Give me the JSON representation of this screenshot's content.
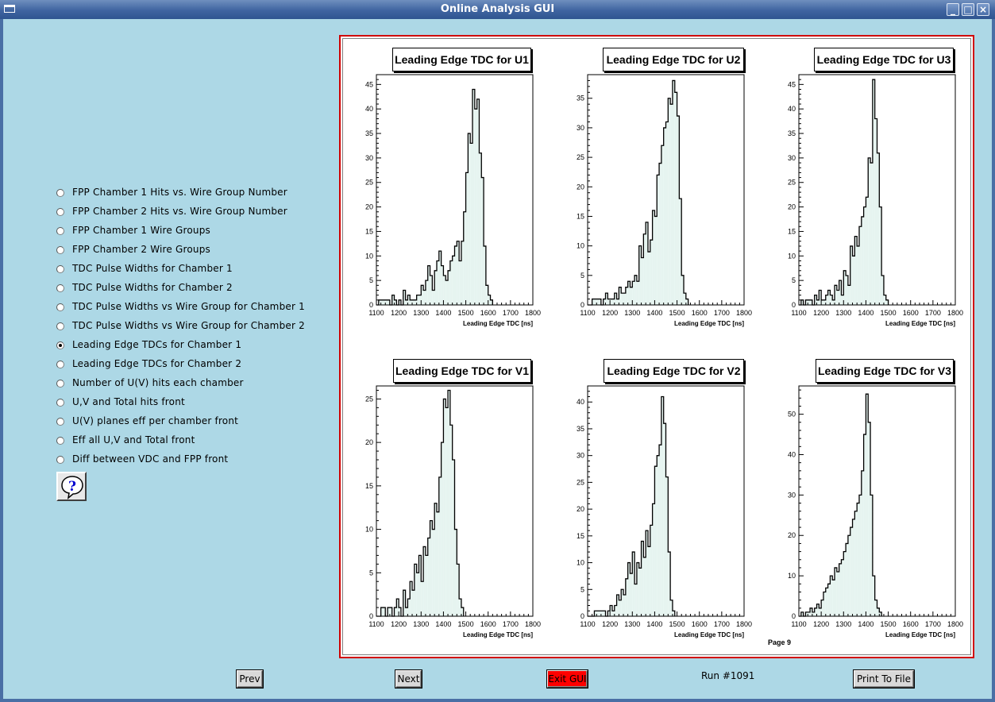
{
  "window": {
    "title": "Online Analysis GUI",
    "minimize": "_",
    "maximize": "□",
    "close": "×"
  },
  "options": [
    {
      "label": "FPP Chamber 1 Hits vs. Wire Group Number",
      "selected": false
    },
    {
      "label": "FPP Chamber 2 Hits vs. Wire Group Number",
      "selected": false
    },
    {
      "label": "FPP Chamber 1 Wire Groups",
      "selected": false
    },
    {
      "label": "FPP Chamber 2 Wire Groups",
      "selected": false
    },
    {
      "label": "TDC Pulse Widths for Chamber 1",
      "selected": false
    },
    {
      "label": "TDC Pulse Widths for Chamber 2",
      "selected": false
    },
    {
      "label": "TDC Pulse Widths vs Wire Group for Chamber 1",
      "selected": false
    },
    {
      "label": "TDC Pulse Widths vs Wire Group for Chamber 2",
      "selected": false
    },
    {
      "label": "Leading Edge TDCs for Chamber 1",
      "selected": true
    },
    {
      "label": "Leading Edge TDCs for Chamber 2",
      "selected": false
    },
    {
      "label": "Number of U(V) hits each chamber",
      "selected": false
    },
    {
      "label": "U,V and Total hits front",
      "selected": false
    },
    {
      "label": "U(V) planes eff per chamber front",
      "selected": false
    },
    {
      "label": "Eff all U,V and Total front",
      "selected": false
    },
    {
      "label": "Diff between VDC and FPP front",
      "selected": false
    }
  ],
  "help_icon": "question-mark-balloon-icon",
  "page_label": "Page 9",
  "colors": {
    "frame_border": "#d00000",
    "histogram_fill": "#e6f4f0",
    "background": "#add8e6",
    "exit_button": "#ff0000"
  },
  "chart_data": [
    {
      "type": "bar",
      "title": "Leading Edge TDC for U1",
      "xlabel": "Leading Edge TDC [ns]",
      "ylabel": "",
      "xlim": [
        1100,
        1800
      ],
      "ylim": [
        0,
        47
      ],
      "xticks": [
        1100,
        1200,
        1300,
        1400,
        1500,
        1600,
        1700,
        1800
      ],
      "yticks": [
        0,
        5,
        10,
        15,
        20,
        25,
        30,
        35,
        40,
        45
      ],
      "bin_start": 1100,
      "bin_width": 10,
      "values": [
        0,
        1,
        1,
        1,
        1,
        1,
        0,
        2,
        1,
        0,
        1,
        0,
        3,
        1,
        2,
        1,
        1,
        1,
        2,
        2,
        4,
        3,
        5,
        8,
        6,
        3,
        7,
        9,
        11,
        8,
        6,
        5,
        7,
        9,
        10,
        12,
        13,
        9,
        13,
        19,
        27,
        35,
        33,
        44,
        40,
        42,
        31,
        26,
        12,
        4,
        2,
        1
      ]
    },
    {
      "type": "bar",
      "title": "Leading Edge TDC for U2",
      "xlabel": "Leading Edge TDC [ns]",
      "ylabel": "",
      "xlim": [
        1100,
        1800
      ],
      "ylim": [
        0,
        39
      ],
      "xticks": [
        1100,
        1200,
        1300,
        1400,
        1500,
        1600,
        1700,
        1800
      ],
      "yticks": [
        0,
        5,
        10,
        15,
        20,
        25,
        30,
        35
      ],
      "bin_start": 1100,
      "bin_width": 10,
      "values": [
        0,
        0,
        1,
        1,
        1,
        1,
        0,
        1,
        2,
        1,
        1,
        1,
        2,
        1,
        3,
        2,
        2,
        3,
        4,
        3,
        4,
        5,
        4,
        10,
        8,
        12,
        14,
        9,
        11,
        16,
        15,
        22,
        24,
        27,
        30,
        31,
        35,
        34,
        38,
        36,
        32,
        18,
        5,
        2,
        1
      ]
    },
    {
      "type": "bar",
      "title": "Leading Edge TDC for U3",
      "xlabel": "Leading Edge TDC [ns]",
      "ylabel": "",
      "xlim": [
        1100,
        1800
      ],
      "ylim": [
        0,
        47
      ],
      "xticks": [
        1100,
        1200,
        1300,
        1400,
        1500,
        1600,
        1700,
        1800
      ],
      "yticks": [
        0,
        5,
        10,
        15,
        20,
        25,
        30,
        35,
        40,
        45
      ],
      "bin_start": 1100,
      "bin_width": 10,
      "values": [
        0,
        1,
        0,
        1,
        1,
        1,
        0,
        2,
        1,
        3,
        1,
        1,
        2,
        3,
        2,
        1,
        4,
        3,
        5,
        2,
        7,
        6,
        4,
        12,
        10,
        14,
        12,
        16,
        18,
        20,
        22,
        30,
        29,
        46,
        38,
        31,
        20,
        6,
        2,
        1
      ]
    },
    {
      "type": "bar",
      "title": "Leading Edge TDC for V1",
      "xlabel": "Leading Edge TDC [ns]",
      "ylabel": "",
      "xlim": [
        1100,
        1800
      ],
      "ylim": [
        0,
        26.5
      ],
      "xticks": [
        1100,
        1200,
        1300,
        1400,
        1500,
        1600,
        1700,
        1800
      ],
      "yticks": [
        0,
        5,
        10,
        15,
        20,
        25
      ],
      "bin_start": 1100,
      "bin_width": 10,
      "values": [
        0,
        0,
        1,
        1,
        0,
        1,
        1,
        0,
        1,
        2,
        1,
        0,
        3,
        1,
        2,
        4,
        3,
        6,
        5,
        7,
        4,
        8,
        7,
        9,
        11,
        10,
        13,
        12,
        16,
        20,
        25,
        24,
        26,
        22,
        18,
        10,
        6,
        2,
        1
      ]
    },
    {
      "type": "bar",
      "title": "Leading Edge TDC for V2",
      "xlabel": "Leading Edge TDC [ns]",
      "ylabel": "",
      "xlim": [
        1100,
        1800
      ],
      "ylim": [
        0,
        43
      ],
      "xticks": [
        1100,
        1200,
        1300,
        1400,
        1500,
        1600,
        1700,
        1800
      ],
      "yticks": [
        0,
        5,
        10,
        15,
        20,
        25,
        30,
        35,
        40
      ],
      "bin_start": 1100,
      "bin_width": 10,
      "values": [
        0,
        0,
        0,
        1,
        1,
        1,
        1,
        1,
        0,
        1,
        2,
        1,
        2,
        4,
        3,
        5,
        4,
        7,
        10,
        8,
        12,
        6,
        10,
        9,
        14,
        11,
        16,
        13,
        17,
        21,
        28,
        30,
        32,
        41,
        36,
        26,
        12,
        3,
        1
      ]
    },
    {
      "type": "bar",
      "title": "Leading Edge TDC for V3",
      "xlabel": "Leading Edge TDC [ns]",
      "ylabel": "",
      "xlim": [
        1100,
        1800
      ],
      "ylim": [
        0,
        57
      ],
      "xticks": [
        1100,
        1200,
        1300,
        1400,
        1500,
        1600,
        1700,
        1800
      ],
      "yticks": [
        0,
        10,
        20,
        30,
        40,
        50
      ],
      "bin_start": 1100,
      "bin_width": 10,
      "values": [
        0,
        1,
        0,
        1,
        1,
        2,
        1,
        2,
        3,
        2,
        4,
        6,
        7,
        8,
        10,
        9,
        12,
        11,
        13,
        14,
        16,
        18,
        20,
        22,
        24,
        26,
        28,
        30,
        36,
        45,
        55,
        48,
        30,
        10,
        4,
        2,
        1
      ]
    }
  ],
  "buttons": {
    "prev": "Prev",
    "next": "Next",
    "exit": "Exit GUI",
    "print": "Print To File"
  },
  "run_label": "Run #1091"
}
